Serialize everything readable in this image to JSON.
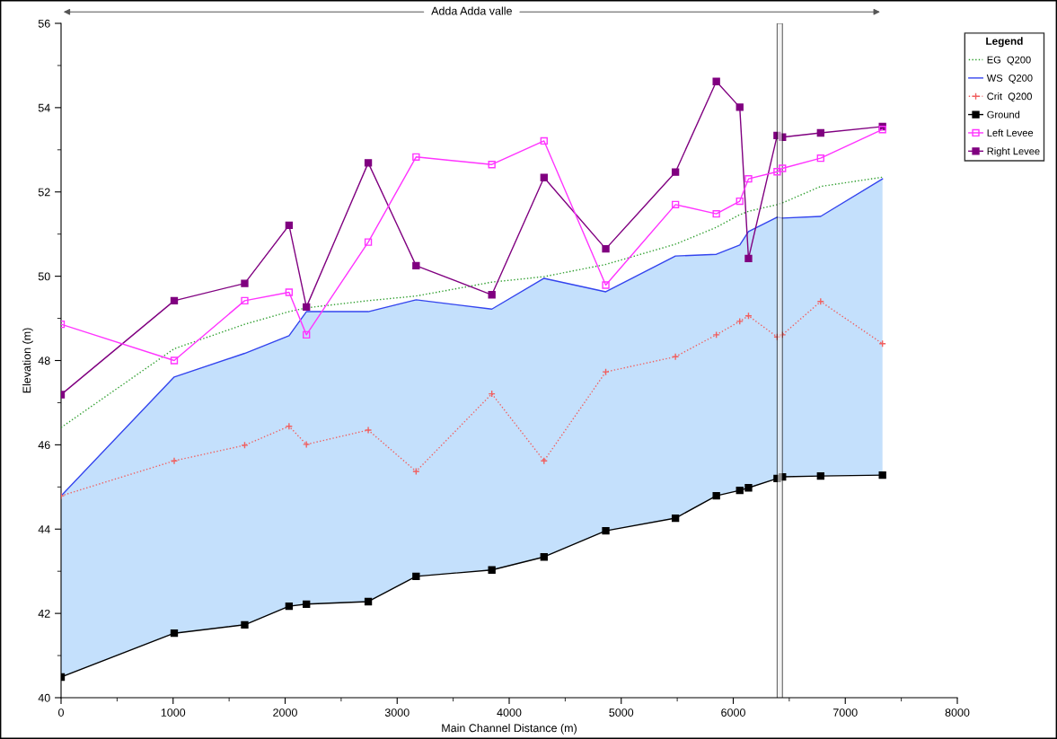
{
  "chart_data": {
    "type": "line",
    "xlabel": "Main Channel Distance (m)",
    "ylabel": "Elevation (m)",
    "legend_title": "Legend",
    "annotations": [
      "Adda Adda valle"
    ],
    "x": [
      0,
      1010,
      1639,
      2035,
      2190,
      2742,
      3169,
      3845,
      4311,
      4862,
      5484,
      5849,
      6058,
      6136,
      6392,
      6439,
      6780,
      7332
    ],
    "series": [
      {
        "name": "EG  Q200",
        "color": "#2e9e2e",
        "line_style": "dotted",
        "marker": "none",
        "values": [
          46.41,
          48.28,
          48.86,
          49.16,
          49.25,
          49.42,
          49.53,
          49.86,
          49.99,
          50.28,
          50.76,
          51.16,
          51.46,
          51.54,
          51.7,
          51.74,
          52.13,
          52.35
        ]
      },
      {
        "name": "WS  Q200",
        "color": "#3344ee",
        "line_style": "solid",
        "marker": "none",
        "values": [
          44.79,
          47.61,
          48.17,
          48.59,
          49.16,
          49.16,
          49.44,
          49.22,
          49.95,
          49.63,
          50.48,
          50.52,
          50.74,
          51.06,
          51.4,
          51.38,
          51.42,
          52.31
        ],
        "lower": [
          40.49,
          41.53,
          41.73,
          42.17,
          42.22,
          42.28,
          42.88,
          43.03,
          43.34,
          43.96,
          44.26,
          44.79,
          44.92,
          44.98,
          45.2,
          45.24,
          45.26,
          45.28
        ],
        "upper": [
          44.79,
          47.61,
          48.17,
          48.59,
          49.16,
          49.16,
          49.44,
          49.22,
          49.95,
          49.63,
          50.48,
          50.52,
          50.74,
          51.06,
          51.4,
          51.38,
          51.42,
          52.31
        ]
      },
      {
        "name": "Crit  Q200",
        "color": "#f06060",
        "line_style": "dotted",
        "marker": "cross",
        "values": [
          44.79,
          45.62,
          45.99,
          46.44,
          46.01,
          46.35,
          45.37,
          47.21,
          45.62,
          47.73,
          48.09,
          48.61,
          48.93,
          49.06,
          48.56,
          48.61,
          49.4,
          48.4
        ]
      },
      {
        "name": "Ground",
        "color": "#000000",
        "line_style": "solid",
        "marker": "square",
        "values": [
          40.49,
          41.53,
          41.73,
          42.17,
          42.22,
          42.28,
          42.88,
          43.03,
          43.34,
          43.96,
          44.26,
          44.79,
          44.92,
          44.98,
          45.2,
          45.24,
          45.26,
          45.28
        ]
      },
      {
        "name": "Left Levee",
        "color": "#ff33ff",
        "line_style": "solid",
        "marker": "square_open",
        "values": [
          48.86,
          48.0,
          49.42,
          49.62,
          48.61,
          50.81,
          52.83,
          52.65,
          53.21,
          49.79,
          51.7,
          51.48,
          51.78,
          52.31,
          52.48,
          52.56,
          52.8,
          53.48
        ]
      },
      {
        "name": "Right Levee",
        "color": "#800080",
        "line_style": "solid",
        "marker": "square",
        "values": [
          47.19,
          49.42,
          49.83,
          51.21,
          49.27,
          52.69,
          50.25,
          49.56,
          52.34,
          50.65,
          52.47,
          54.62,
          54.01,
          50.42,
          53.34,
          53.3,
          53.4,
          53.55
        ]
      }
    ],
    "bands": [
      {
        "axis": "x",
        "from": 6392,
        "to": 6439,
        "color": "#000000"
      }
    ],
    "xlim": [
      0,
      8000
    ],
    "ylim": [
      40,
      56
    ],
    "xticks": [
      0,
      {
        "value": 500,
        "label": null
      },
      1000,
      {
        "value": 1500,
        "label": null
      },
      2000,
      {
        "value": 2500,
        "label": null
      },
      3000,
      {
        "value": 3500,
        "label": null
      },
      4000,
      {
        "value": 4500,
        "label": null
      },
      5000,
      {
        "value": 5500,
        "label": null
      },
      6000,
      {
        "value": 6500,
        "label": null
      },
      7000,
      {
        "value": 7500,
        "label": null
      },
      8000
    ],
    "yticks": [
      40,
      {
        "value": 41,
        "label": null
      },
      42,
      {
        "value": 43,
        "label": null
      },
      44,
      {
        "value": 45,
        "label": null
      },
      46,
      {
        "value": 47,
        "label": null
      },
      48,
      {
        "value": 49,
        "label": null
      },
      50,
      {
        "value": 51,
        "label": null
      },
      52,
      {
        "value": 53,
        "label": null
      },
      54,
      {
        "value": 55,
        "label": null
      },
      56
    ],
    "grid": false,
    "legend": "top right"
  }
}
